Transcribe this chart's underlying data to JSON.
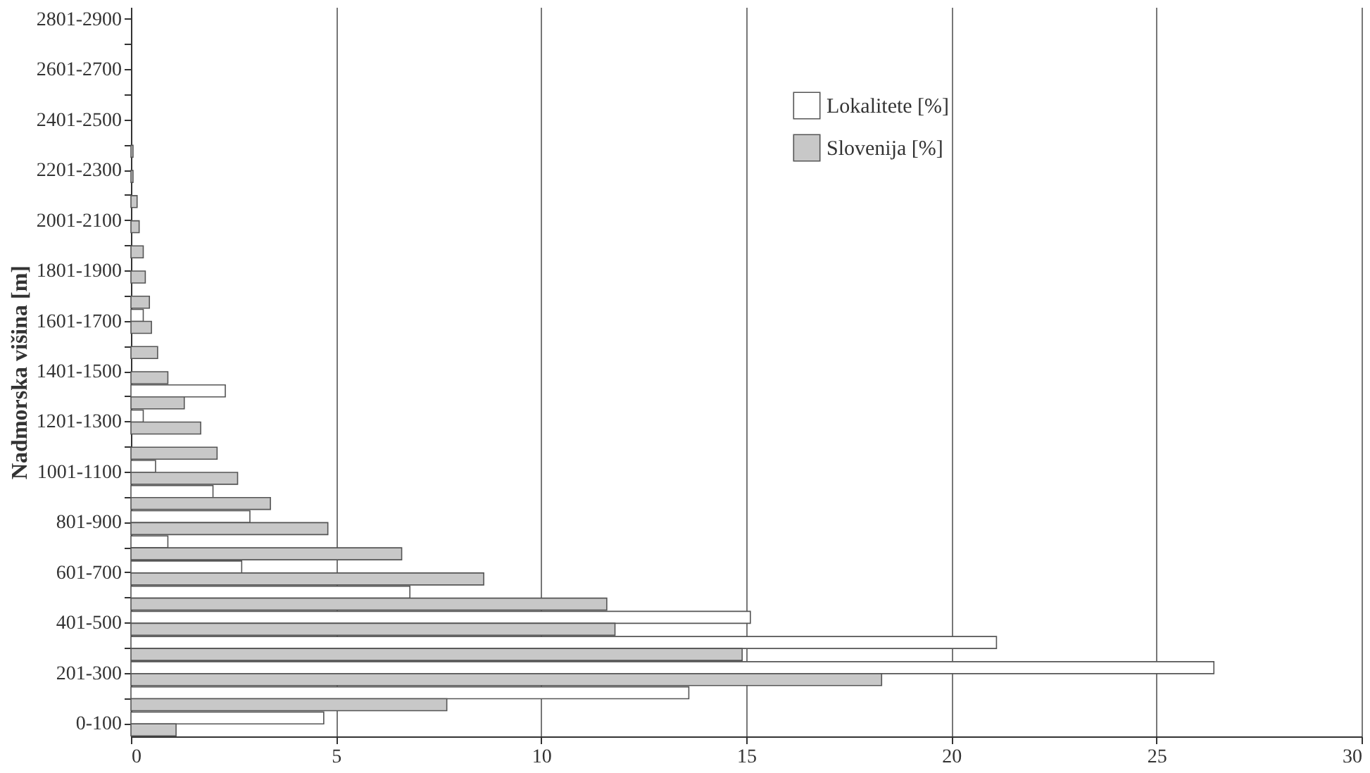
{
  "chart_data": {
    "type": "bar",
    "orientation": "horizontal",
    "ylabel": "Nadmorska višina [m]",
    "categories": [
      "2801-2900",
      null,
      "2601-2700",
      null,
      "2401-2500",
      null,
      "2201-2300",
      null,
      "2001-2100",
      null,
      "1801-1900",
      null,
      "1601-1700",
      null,
      "1401-1500",
      null,
      "1201-1300",
      null,
      "1001-1100",
      null,
      "801-900",
      null,
      "601-700",
      null,
      "401-500",
      null,
      "201-300",
      null,
      "0-100"
    ],
    "series": [
      {
        "name": "Lokalitete [%]",
        "color": "#ffffff",
        "values": [
          0,
          0,
          0,
          0,
          0,
          0,
          0,
          0,
          0,
          0,
          0,
          0,
          0.3,
          0,
          0,
          2.3,
          0.3,
          0,
          0.6,
          2.0,
          2.9,
          0.9,
          2.7,
          6.8,
          15.1,
          21.1,
          26.4,
          13.6,
          4.7
        ]
      },
      {
        "name": "Slovenija [%]",
        "color": "#c8c8c8",
        "values": [
          0,
          0,
          0,
          0,
          0,
          0.05,
          0.05,
          0.15,
          0.2,
          0.3,
          0.35,
          0.45,
          0.5,
          0.65,
          0.9,
          1.3,
          1.7,
          2.1,
          2.6,
          3.4,
          4.8,
          6.6,
          8.6,
          11.6,
          11.8,
          14.9,
          18.3,
          7.7,
          1.1
        ]
      }
    ],
    "xlim": [
      0,
      30
    ],
    "xticks": [
      0,
      5,
      10,
      15,
      20,
      25,
      30
    ],
    "grid": "x",
    "legend": "top right"
  }
}
